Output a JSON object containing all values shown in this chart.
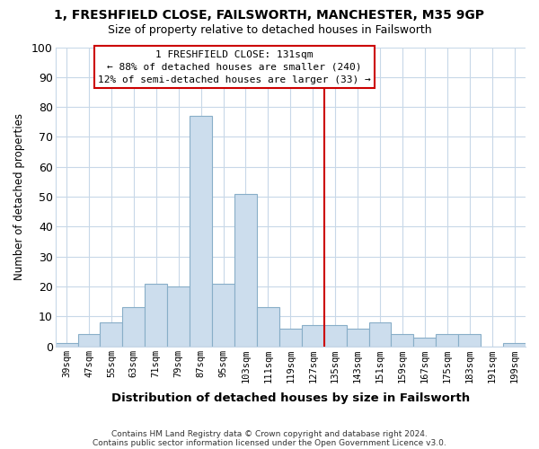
{
  "title": "1, FRESHFIELD CLOSE, FAILSWORTH, MANCHESTER, M35 9GP",
  "subtitle": "Size of property relative to detached houses in Failsworth",
  "xlabel": "Distribution of detached houses by size in Failsworth",
  "ylabel": "Number of detached properties",
  "bar_labels": [
    "39sqm",
    "47sqm",
    "55sqm",
    "63sqm",
    "71sqm",
    "79sqm",
    "87sqm",
    "95sqm",
    "103sqm",
    "111sqm",
    "119sqm",
    "127sqm",
    "135sqm",
    "143sqm",
    "151sqm",
    "159sqm",
    "167sqm",
    "175sqm",
    "183sqm",
    "191sqm",
    "199sqm"
  ],
  "bar_values": [
    1,
    4,
    8,
    13,
    21,
    20,
    77,
    21,
    51,
    13,
    6,
    7,
    7,
    6,
    8,
    4,
    3,
    4,
    4,
    0,
    1
  ],
  "bar_color": "#ccdded",
  "bar_edge_color": "#88aec8",
  "grid_color": "#c8d8e8",
  "vline_color": "#cc0000",
  "vline_x": 11.5,
  "annotation_box_text_line1": "1 FRESHFIELD CLOSE: 131sqm",
  "annotation_box_text_line2": "← 88% of detached houses are smaller (240)",
  "annotation_box_text_line3": "12% of semi-detached houses are larger (33) →",
  "ylim": [
    0,
    100
  ],
  "yticks": [
    0,
    10,
    20,
    30,
    40,
    50,
    60,
    70,
    80,
    90,
    100
  ],
  "footer_line1": "Contains HM Land Registry data © Crown copyright and database right 2024.",
  "footer_line2": "Contains public sector information licensed under the Open Government Licence v3.0.",
  "bg_color": "#ffffff",
  "plot_bg_color": "#ffffff"
}
